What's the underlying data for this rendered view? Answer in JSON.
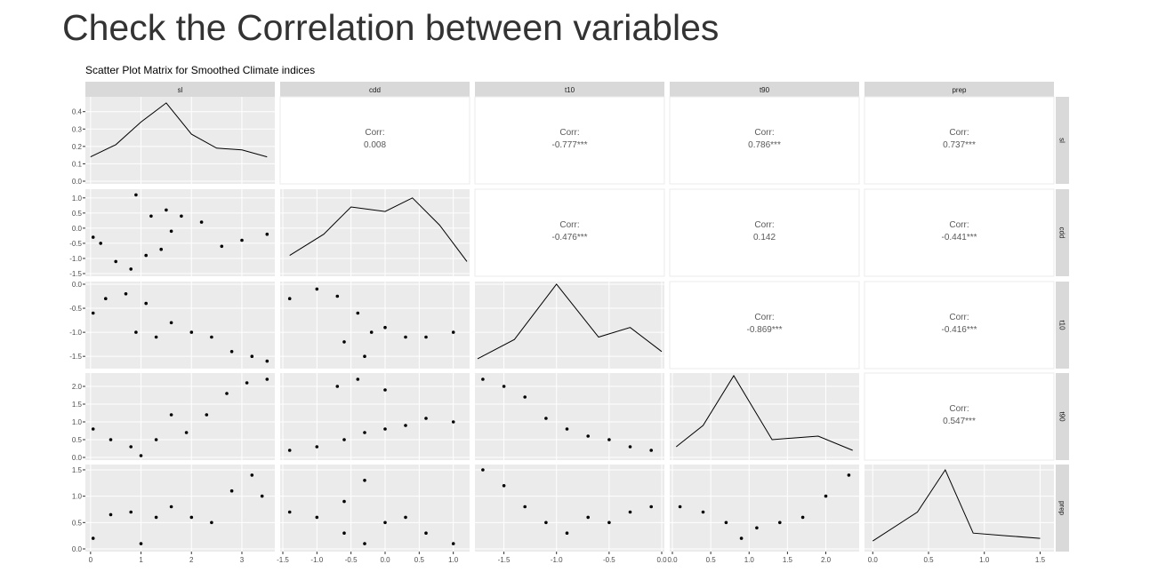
{
  "page": {
    "title": "Check the Correlation between variables"
  },
  "chart_data": {
    "type": "scatter",
    "title": "Scatter Plot Matrix for Smoothed Climate indices",
    "variables": [
      "sl",
      "cdd",
      "t10",
      "t90",
      "prep"
    ],
    "corr_label": "Corr:",
    "correlations": [
      {
        "row": "cdd",
        "col": "sl",
        "value": "0.008"
      },
      {
        "row": "t10",
        "col": "sl",
        "value": "-0.777***"
      },
      {
        "row": "t90",
        "col": "sl",
        "value": "0.786***"
      },
      {
        "row": "prep",
        "col": "sl",
        "value": "0.737***"
      },
      {
        "row": "t10",
        "col": "cdd",
        "value": "-0.476***"
      },
      {
        "row": "t90",
        "col": "cdd",
        "value": "0.142"
      },
      {
        "row": "prep",
        "col": "cdd",
        "value": "-0.441***"
      },
      {
        "row": "t90",
        "col": "t10",
        "value": "-0.869***"
      },
      {
        "row": "prep",
        "col": "t10",
        "value": "-0.416***"
      },
      {
        "row": "prep",
        "col": "t90",
        "value": "0.547***"
      }
    ],
    "x_axes": [
      {
        "var": "sl",
        "range": [
          -0.05,
          3.6
        ],
        "ticks": [
          0,
          1,
          2,
          3
        ],
        "tick_labels": [
          "0",
          "1",
          "2",
          "3"
        ]
      },
      {
        "var": "cdd",
        "range": [
          -1.5,
          1.2
        ],
        "ticks": [
          -1.5,
          -1.0,
          -0.5,
          0.0,
          0.5,
          1.0
        ],
        "tick_labels": [
          "-1.5",
          "-1.0",
          "-0.5",
          "0.0",
          "0.5",
          "1.0"
        ]
      },
      {
        "var": "t10",
        "range": [
          -1.75,
          0.0
        ],
        "ticks": [
          -1.5,
          -1.0,
          -0.5,
          0.0
        ],
        "tick_labels": [
          "-1.5",
          "-1.0",
          "-0.5",
          "0.0"
        ]
      },
      {
        "var": "t90",
        "range": [
          0.0,
          2.4
        ],
        "ticks": [
          0.0,
          0.5,
          1.0,
          1.5,
          2.0
        ],
        "tick_labels": [
          "0.0",
          "0.5",
          "1.0",
          "1.5",
          "2.0"
        ]
      },
      {
        "var": "prep",
        "range": [
          -0.05,
          1.6
        ],
        "ticks": [
          0.0,
          0.5,
          1.0,
          1.5
        ],
        "tick_labels": [
          "0.0",
          "0.5",
          "1.0",
          "1.5"
        ]
      }
    ],
    "y_axes": [
      {
        "row": "sl",
        "range": [
          0.0,
          0.47
        ],
        "ticks": [
          0.0,
          0.1,
          0.2,
          0.3,
          0.4
        ],
        "tick_labels": [
          "0.0",
          "0.1",
          "0.2",
          "0.3",
          "0.4"
        ]
      },
      {
        "row": "cdd",
        "range": [
          -1.5,
          1.2
        ],
        "ticks": [
          -1.5,
          -1.0,
          -0.5,
          0.0,
          0.5,
          1.0
        ],
        "tick_labels": [
          "-1.5",
          "-1.0",
          "-0.5",
          "0.0",
          "0.5",
          "1.0"
        ]
      },
      {
        "row": "t10",
        "range": [
          -1.7,
          0.0
        ],
        "ticks": [
          -1.5,
          -1.0,
          -0.5,
          0.0
        ],
        "tick_labels": [
          "-1.5",
          "-1.0",
          "-0.5",
          "0.0"
        ]
      },
      {
        "row": "t90",
        "range": [
          0.0,
          2.3
        ],
        "ticks": [
          0.0,
          0.5,
          1.0,
          1.5,
          2.0
        ],
        "tick_labels": [
          "0.0",
          "0.5",
          "1.0",
          "1.5",
          "2.0"
        ]
      },
      {
        "row": "prep",
        "range": [
          0.0,
          1.55
        ],
        "ticks": [
          0.0,
          0.5,
          1.0,
          1.5
        ],
        "tick_labels": [
          "0.0",
          "0.5",
          "1.0",
          "1.5"
        ]
      }
    ],
    "densities": {
      "sl": [
        [
          0.0,
          0.14
        ],
        [
          0.5,
          0.21
        ],
        [
          1.0,
          0.34
        ],
        [
          1.5,
          0.45
        ],
        [
          2.0,
          0.27
        ],
        [
          2.5,
          0.19
        ],
        [
          3.0,
          0.18
        ],
        [
          3.5,
          0.14
        ]
      ],
      "cdd": [
        [
          -1.4,
          -0.9
        ],
        [
          -0.9,
          -0.2
        ],
        [
          -0.5,
          0.7
        ],
        [
          0.0,
          0.55
        ],
        [
          0.4,
          1.0
        ],
        [
          0.8,
          0.1
        ],
        [
          1.2,
          -1.1
        ]
      ],
      "t10": [
        [
          -1.75,
          -1.55
        ],
        [
          -1.4,
          -1.15
        ],
        [
          -1.0,
          0.0
        ],
        [
          -0.6,
          -1.1
        ],
        [
          -0.3,
          -0.9
        ],
        [
          0.0,
          -1.4
        ]
      ],
      "t90": [
        [
          0.05,
          0.3
        ],
        [
          0.4,
          0.9
        ],
        [
          0.8,
          2.3
        ],
        [
          1.3,
          0.5
        ],
        [
          1.9,
          0.6
        ],
        [
          2.35,
          0.2
        ]
      ],
      "prep": [
        [
          0.0,
          0.15
        ],
        [
          0.4,
          0.7
        ],
        [
          0.65,
          1.5
        ],
        [
          0.9,
          0.3
        ],
        [
          1.2,
          0.25
        ],
        [
          1.5,
          0.2
        ]
      ]
    },
    "points": {
      "cdd_sl": [
        [
          0.05,
          -0.3
        ],
        [
          0.2,
          -0.5
        ],
        [
          0.5,
          -1.1
        ],
        [
          0.8,
          -1.35
        ],
        [
          1.1,
          -0.9
        ],
        [
          1.4,
          -0.7
        ],
        [
          1.6,
          -0.1
        ],
        [
          1.5,
          0.6
        ],
        [
          1.2,
          0.4
        ],
        [
          0.9,
          1.1
        ],
        [
          1.8,
          0.4
        ],
        [
          2.2,
          0.2
        ],
        [
          2.6,
          -0.6
        ],
        [
          3.0,
          -0.4
        ],
        [
          3.5,
          -0.2
        ]
      ],
      "t10_sl": [
        [
          0.05,
          -0.6
        ],
        [
          0.3,
          -0.3
        ],
        [
          0.7,
          -0.2
        ],
        [
          1.1,
          -0.4
        ],
        [
          0.9,
          -1.0
        ],
        [
          1.3,
          -1.1
        ],
        [
          1.6,
          -0.8
        ],
        [
          2.0,
          -1.0
        ],
        [
          2.4,
          -1.1
        ],
        [
          2.8,
          -1.4
        ],
        [
          3.2,
          -1.5
        ],
        [
          3.5,
          -1.6
        ]
      ],
      "t90_sl": [
        [
          0.05,
          0.8
        ],
        [
          0.4,
          0.5
        ],
        [
          0.8,
          0.3
        ],
        [
          1.0,
          0.05
        ],
        [
          1.3,
          0.5
        ],
        [
          1.6,
          1.2
        ],
        [
          1.9,
          0.7
        ],
        [
          2.3,
          1.2
        ],
        [
          2.7,
          1.8
        ],
        [
          3.1,
          2.1
        ],
        [
          3.5,
          2.2
        ]
      ],
      "prep_sl": [
        [
          0.05,
          0.2
        ],
        [
          0.4,
          0.65
        ],
        [
          0.8,
          0.7
        ],
        [
          1.0,
          0.1
        ],
        [
          1.3,
          0.6
        ],
        [
          1.6,
          0.8
        ],
        [
          2.0,
          0.6
        ],
        [
          2.4,
          0.5
        ],
        [
          2.8,
          1.1
        ],
        [
          3.2,
          1.4
        ],
        [
          3.4,
          1.0
        ]
      ],
      "t10_cdd": [
        [
          -1.4,
          -0.3
        ],
        [
          -1.0,
          -0.1
        ],
        [
          -0.7,
          -0.25
        ],
        [
          -0.4,
          -0.6
        ],
        [
          -0.2,
          -1.0
        ],
        [
          0.0,
          -0.9
        ],
        [
          0.3,
          -1.1
        ],
        [
          0.6,
          -1.1
        ],
        [
          1.0,
          -1.0
        ],
        [
          -0.6,
          -1.2
        ],
        [
          -0.3,
          -1.5
        ]
      ],
      "t90_cdd": [
        [
          -1.4,
          0.2
        ],
        [
          -1.0,
          0.3
        ],
        [
          -0.6,
          0.5
        ],
        [
          -0.3,
          0.7
        ],
        [
          0.0,
          0.8
        ],
        [
          0.3,
          0.9
        ],
        [
          0.6,
          1.1
        ],
        [
          1.0,
          1.0
        ],
        [
          -0.7,
          2.0
        ],
        [
          -0.4,
          2.2
        ],
        [
          0.0,
          1.9
        ]
      ],
      "prep_cdd": [
        [
          -1.4,
          0.7
        ],
        [
          -1.0,
          0.6
        ],
        [
          -0.6,
          0.9
        ],
        [
          -0.3,
          1.3
        ],
        [
          0.0,
          0.5
        ],
        [
          0.3,
          0.6
        ],
        [
          0.6,
          0.3
        ],
        [
          1.0,
          0.1
        ],
        [
          -0.6,
          0.3
        ],
        [
          -0.3,
          0.1
        ]
      ],
      "t90_t10": [
        [
          -1.7,
          2.2
        ],
        [
          -1.5,
          2.0
        ],
        [
          -1.3,
          1.7
        ],
        [
          -1.1,
          1.1
        ],
        [
          -0.9,
          0.8
        ],
        [
          -0.7,
          0.6
        ],
        [
          -0.5,
          0.5
        ],
        [
          -0.3,
          0.3
        ],
        [
          -0.1,
          0.2
        ]
      ],
      "prep_t10": [
        [
          -1.7,
          1.5
        ],
        [
          -1.5,
          1.2
        ],
        [
          -1.3,
          0.8
        ],
        [
          -1.1,
          0.5
        ],
        [
          -0.9,
          0.3
        ],
        [
          -0.7,
          0.6
        ],
        [
          -0.5,
          0.5
        ],
        [
          -0.3,
          0.7
        ],
        [
          -0.1,
          0.8
        ]
      ],
      "prep_t90": [
        [
          0.1,
          0.8
        ],
        [
          0.4,
          0.7
        ],
        [
          0.7,
          0.5
        ],
        [
          0.9,
          0.2
        ],
        [
          1.1,
          0.4
        ],
        [
          1.4,
          0.5
        ],
        [
          1.7,
          0.6
        ],
        [
          2.0,
          1.0
        ],
        [
          2.3,
          1.4
        ]
      ]
    }
  }
}
